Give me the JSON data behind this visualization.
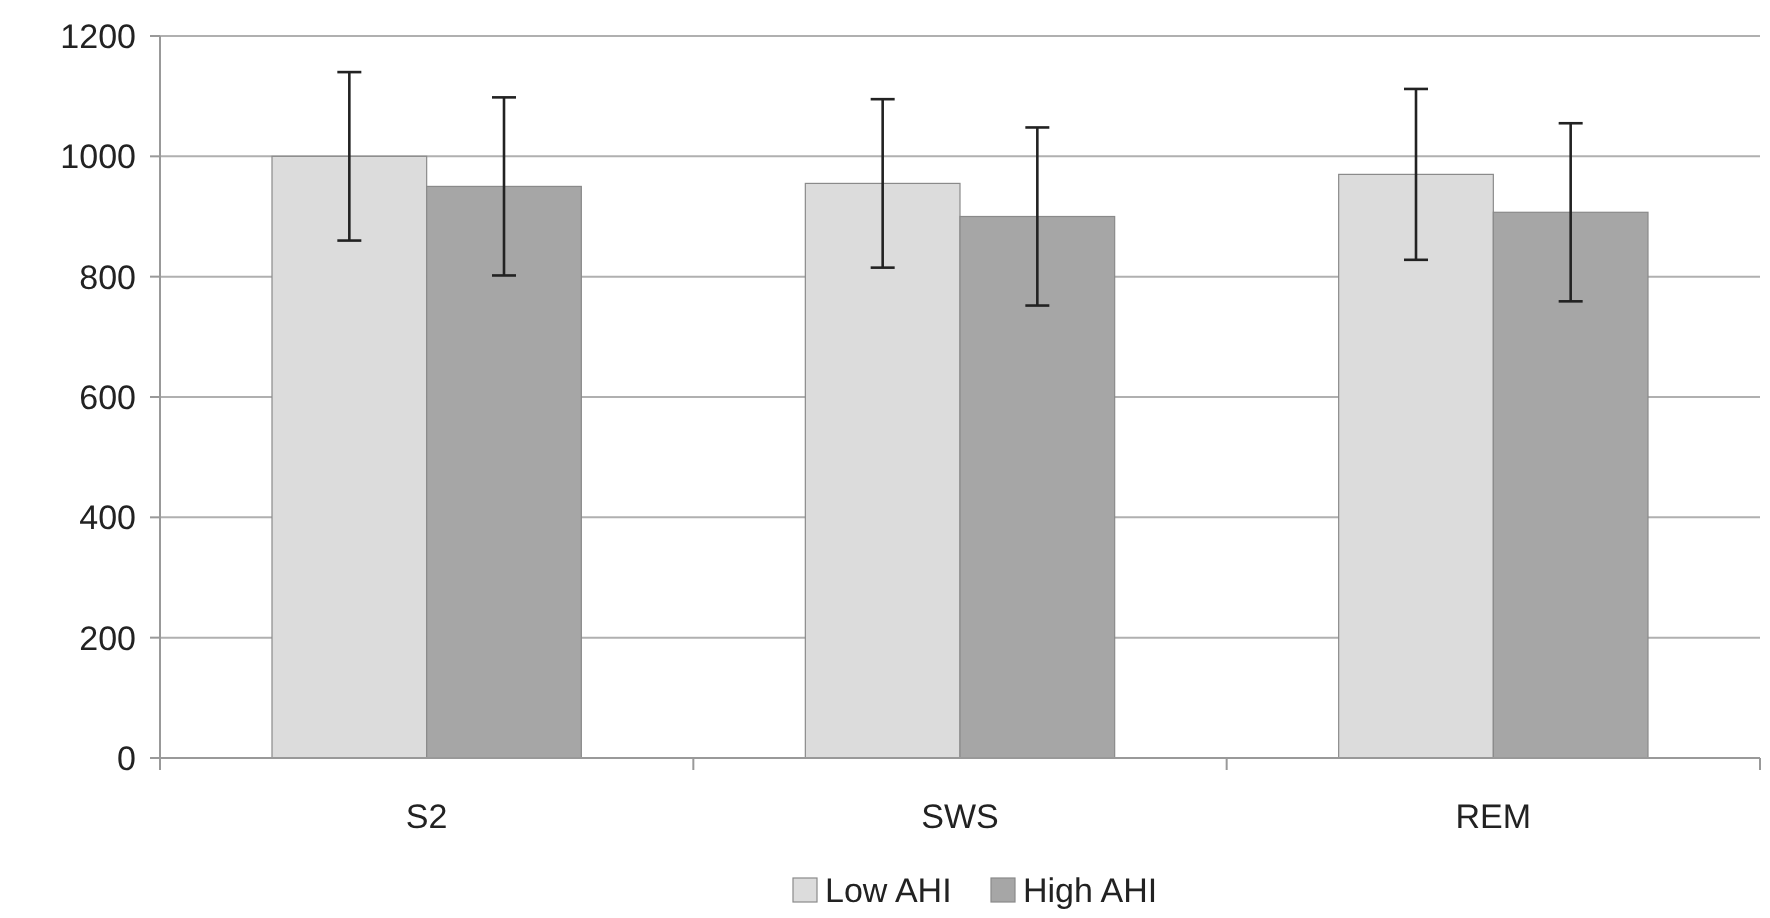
{
  "chart_data": {
    "type": "bar",
    "categories": [
      "S2",
      "SWS",
      "REM"
    ],
    "series": [
      {
        "name": "Low AHI",
        "color": "#dcdcdc",
        "values": [
          1000,
          955,
          970
        ],
        "errors": [
          140,
          140,
          142
        ]
      },
      {
        "name": "High AHI",
        "color": "#a6a6a6",
        "values": [
          950,
          900,
          907
        ],
        "errors": [
          148,
          148,
          148
        ]
      }
    ],
    "ylim": [
      0,
      1200
    ],
    "yticks": [
      0,
      200,
      400,
      600,
      800,
      1000,
      1200
    ],
    "grid": "y",
    "legend": "bottom"
  }
}
